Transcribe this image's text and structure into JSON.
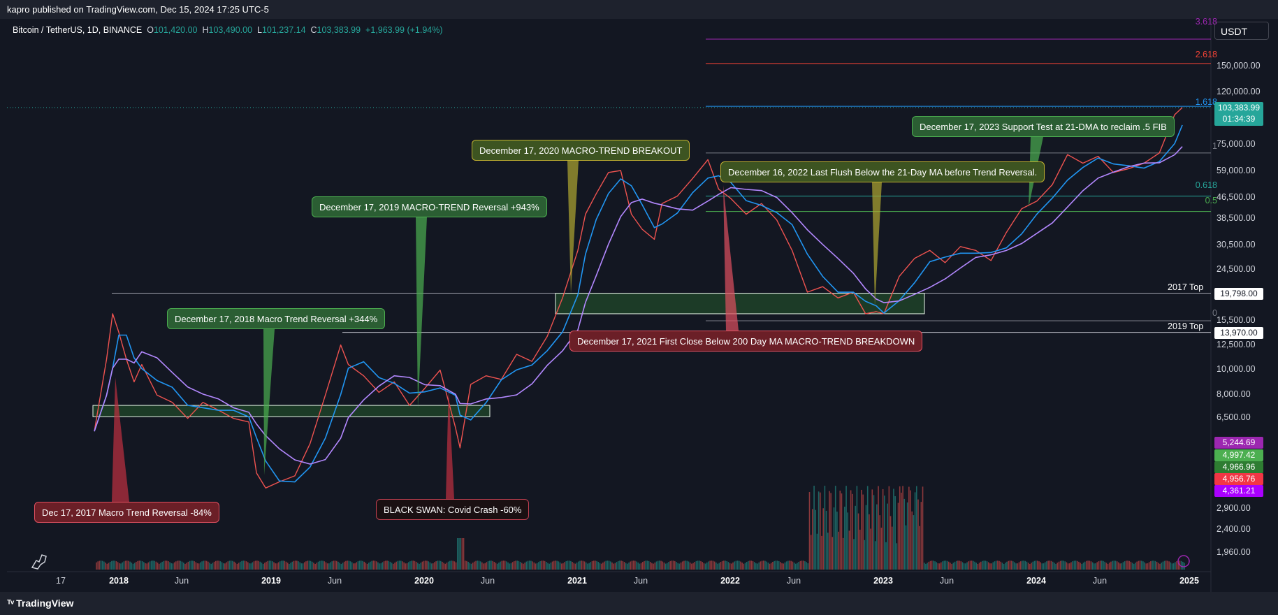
{
  "header": {
    "published": "kapro published on TradingView.com, Dec 15, 2024 17:25 UTC-5"
  },
  "legend": {
    "symbol": "Bitcoin / TetherUS, 1D, BINANCE",
    "open_key": "O",
    "open": "101,420.00",
    "high_key": "H",
    "high": "103,490.00",
    "low_key": "L",
    "low": "101,237.14",
    "close_key": "C",
    "close": "103,383.99",
    "change": "+1,963.99 (+1.94%)"
  },
  "currency": "USDT",
  "footer": {
    "brand": "TradingView"
  },
  "colors": {
    "background": "#131722",
    "up": "#26a69a",
    "down": "#ef5350",
    "fib_1618": "#2196f3",
    "fib_2618": "#f44336",
    "fib_3618": "#9c27b0"
  },
  "chart_data": {
    "type": "candlestick",
    "title": "Bitcoin / TetherUS, 1D, BINANCE",
    "y_scale": "log",
    "ylim": [
      1550,
      200000
    ],
    "x_ticks": [
      {
        "label": "17",
        "year": false,
        "t": 2017.96
      },
      {
        "label": "2018",
        "year": true,
        "t": 2018.0
      },
      {
        "label": "Jun",
        "year": false,
        "t": 2018.42
      },
      {
        "label": "2019",
        "year": true,
        "t": 2019.0
      },
      {
        "label": "Jun",
        "year": false,
        "t": 2019.42
      },
      {
        "label": "2020",
        "year": true,
        "t": 2020.0
      },
      {
        "label": "Jun",
        "year": false,
        "t": 2020.42
      },
      {
        "label": "2021",
        "year": true,
        "t": 2021.0
      },
      {
        "label": "Jun",
        "year": false,
        "t": 2021.42
      },
      {
        "label": "2022",
        "year": true,
        "t": 2022.0
      },
      {
        "label": "Jun",
        "year": false,
        "t": 2022.42
      },
      {
        "label": "2023",
        "year": true,
        "t": 2023.0
      },
      {
        "label": "Jun",
        "year": false,
        "t": 2023.42
      },
      {
        "label": "2024",
        "year": true,
        "t": 2024.0
      },
      {
        "label": "Jun",
        "year": false,
        "t": 2024.42
      },
      {
        "label": "2025",
        "year": true,
        "t": 2025.0
      }
    ],
    "y_ticks": [
      {
        "label": "150,000.00",
        "value": 150000
      },
      {
        "label": "120,000.00",
        "value": 120000
      },
      {
        "label": "75,000.00",
        "value": 75000
      },
      {
        "label": "59,000.00",
        "value": 59000
      },
      {
        "label": "46,500.00",
        "value": 46500
      },
      {
        "label": "38,500.00",
        "value": 38500
      },
      {
        "label": "30,500.00",
        "value": 30500
      },
      {
        "label": "24,500.00",
        "value": 24500
      },
      {
        "label": "15,500.00",
        "value": 15500
      },
      {
        "label": "12,500.00",
        "value": 12500
      },
      {
        "label": "10,000.00",
        "value": 10000
      },
      {
        "label": "8,000.00",
        "value": 8000
      },
      {
        "label": "6,500.00",
        "value": 6500
      },
      {
        "label": "2,900.00",
        "value": 2900
      },
      {
        "label": "2,400.00",
        "value": 2400
      },
      {
        "label": "1,960.00",
        "value": 1960
      }
    ],
    "price_series": {
      "t": [
        2017.84,
        2017.92,
        2017.96,
        2018.0,
        2018.05,
        2018.1,
        2018.15,
        2018.25,
        2018.35,
        2018.45,
        2018.55,
        2018.65,
        2018.75,
        2018.85,
        2018.9,
        2018.96,
        2019.05,
        2019.15,
        2019.25,
        2019.35,
        2019.45,
        2019.5,
        2019.6,
        2019.7,
        2019.8,
        2019.9,
        2020.0,
        2020.1,
        2020.2,
        2020.23,
        2020.3,
        2020.4,
        2020.5,
        2020.6,
        2020.7,
        2020.8,
        2020.9,
        2021.0,
        2021.05,
        2021.12,
        2021.2,
        2021.28,
        2021.35,
        2021.42,
        2021.5,
        2021.55,
        2021.65,
        2021.75,
        2021.85,
        2021.92,
        2022.0,
        2022.1,
        2022.2,
        2022.3,
        2022.4,
        2022.5,
        2022.6,
        2022.7,
        2022.8,
        2022.88,
        2022.95,
        2023.0,
        2023.1,
        2023.2,
        2023.3,
        2023.4,
        2023.5,
        2023.6,
        2023.7,
        2023.8,
        2023.9,
        2024.0,
        2024.1,
        2024.2,
        2024.3,
        2024.4,
        2024.5,
        2024.6,
        2024.7,
        2024.8,
        2024.9,
        2024.95
      ],
      "close": [
        5800,
        11000,
        16500,
        14000,
        11000,
        9000,
        10500,
        8000,
        7500,
        6500,
        7500,
        7000,
        6500,
        6300,
        4000,
        3500,
        3700,
        3900,
        5200,
        8000,
        12500,
        10500,
        9500,
        8200,
        9000,
        7300,
        8500,
        10000,
        6000,
        5000,
        8800,
        9500,
        9200,
        11500,
        10800,
        13500,
        19000,
        29000,
        40000,
        48000,
        58000,
        59000,
        40000,
        35000,
        32000,
        44000,
        47000,
        55000,
        65000,
        50000,
        46000,
        40000,
        44000,
        38000,
        29000,
        20000,
        21000,
        19000,
        20000,
        16500,
        16800,
        16500,
        23000,
        27000,
        29000,
        26000,
        30000,
        29000,
        26500,
        34000,
        42000,
        45000,
        52000,
        68000,
        63000,
        67000,
        58000,
        60000,
        63000,
        69000,
        97000,
        103383
      ]
    },
    "horizontal_levels": [
      {
        "name": "2017 Top",
        "label": "19,798.00",
        "value": 19798
      },
      {
        "name": "2019 Top",
        "label": "13,970.00",
        "value": 13970
      }
    ],
    "fib_levels": [
      {
        "label": "3.618",
        "value": 190000,
        "color": "#9c27b0"
      },
      {
        "label": "2.618",
        "value": 153000,
        "color": "#f44336"
      },
      {
        "label": "1.618",
        "value": 104500,
        "color": "#2196f3"
      },
      {
        "label": "1",
        "value": 69000,
        "color": "#787b86"
      },
      {
        "label": "0.618",
        "value": 47000,
        "color": "#26a69a"
      },
      {
        "label": "0.5",
        "value": 41000,
        "color": "#4caf50"
      },
      {
        "label": "0",
        "value": 15500,
        "color": "#787b86"
      }
    ],
    "current_price": {
      "label": "103,383.99",
      "countdown": "01:34:39"
    },
    "indicator_badges": [
      {
        "label": "5,244.69",
        "bg": "#9c27b0"
      },
      {
        "label": "4,997.42",
        "bg": "#4caf50"
      },
      {
        "label": "4,966.96",
        "bg": "#2e7d32"
      },
      {
        "label": "4,956.76",
        "bg": "#f23645"
      },
      {
        "label": "4,361.21",
        "bg": "#aa00ff"
      }
    ],
    "annotations": [
      {
        "text": "Dec 17, 2017 Macro Trend Reversal -84%",
        "style": "red"
      },
      {
        "text": "December 17, 2018 Macro Trend Reversal +344%",
        "style": "green"
      },
      {
        "text": "December 17, 2019 MACRO-TREND Reversal +943%",
        "style": "green"
      },
      {
        "text": "BLACK SWAN: Covid Crash -60%",
        "style": "dark"
      },
      {
        "text": "December 17, 2020 MACRO-TREND BREAKOUT",
        "style": "olive"
      },
      {
        "text": "December 17, 2021 First Close Below 200 Day MA MACRO-TREND BREAKDOWN",
        "style": "red"
      },
      {
        "text": "December 16, 2022 Last Flush Below the 21-Day MA before Trend Reversal.",
        "style": "olive"
      },
      {
        "text": "December 17, 2023 Support Test at 21-DMA to reclaim .5 FIB",
        "style": "green"
      }
    ]
  }
}
